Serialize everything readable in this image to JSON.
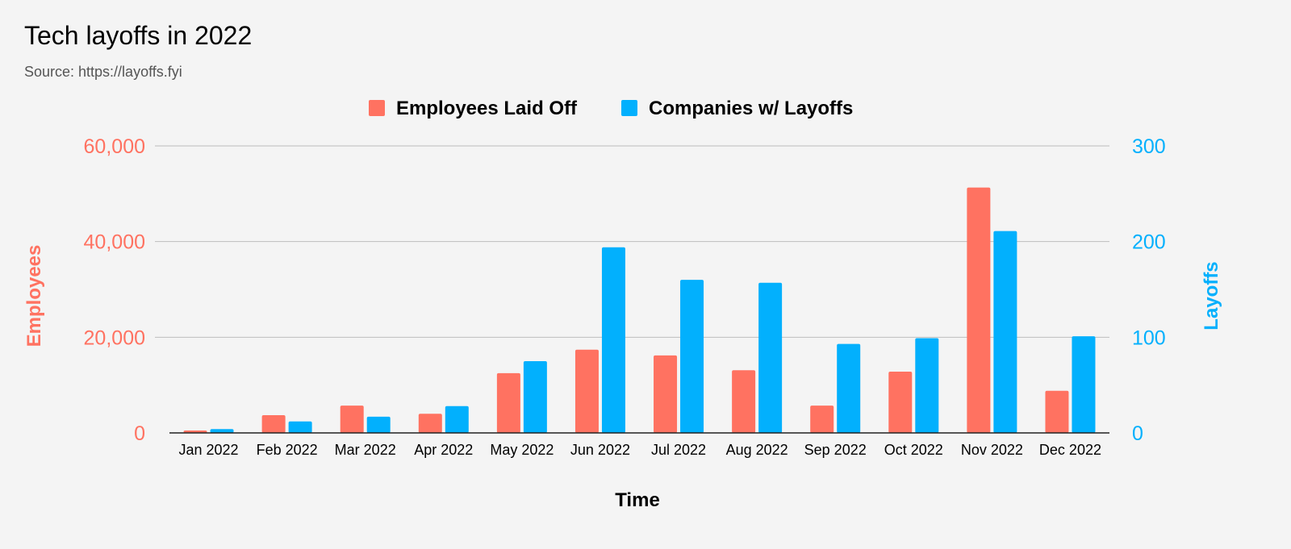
{
  "title": "Tech layoffs in 2022",
  "subtitle": "Source: https://layoffs.fyi",
  "colors": {
    "employees": "#ff7261",
    "companies": "#02b0fd",
    "grid": "#bdbdbd",
    "axis": "#222222"
  },
  "chart_data": {
    "type": "bar",
    "categories": [
      "Jan 2022",
      "Feb 2022",
      "Mar 2022",
      "Apr 2022",
      "May 2022",
      "Jun 2022",
      "Jul 2022",
      "Aug 2022",
      "Sep 2022",
      "Oct 2022",
      "Nov 2022",
      "Dec 2022"
    ],
    "series": [
      {
        "name": "Employees Laid Off",
        "axis": "left",
        "values": [
          510,
          3700,
          5700,
          4000,
          12500,
          17400,
          16200,
          13100,
          5700,
          12800,
          51300,
          8800
        ]
      },
      {
        "name": "Companies w/ Layoffs",
        "axis": "right",
        "values": [
          4,
          12,
          17,
          28,
          75,
          194,
          160,
          157,
          93,
          99,
          211,
          101
        ]
      }
    ],
    "xlabel": "Time",
    "ylabel_left": "Employees",
    "ylabel_right": "Layoffs",
    "ylim_left": [
      0,
      60000
    ],
    "ylim_right": [
      0,
      300
    ],
    "yticks_left": [
      "0",
      "20,000",
      "40,000",
      "60,000"
    ],
    "yticks_right": [
      "0",
      "100",
      "200",
      "300"
    ],
    "grid": true,
    "legend": "top-center"
  }
}
